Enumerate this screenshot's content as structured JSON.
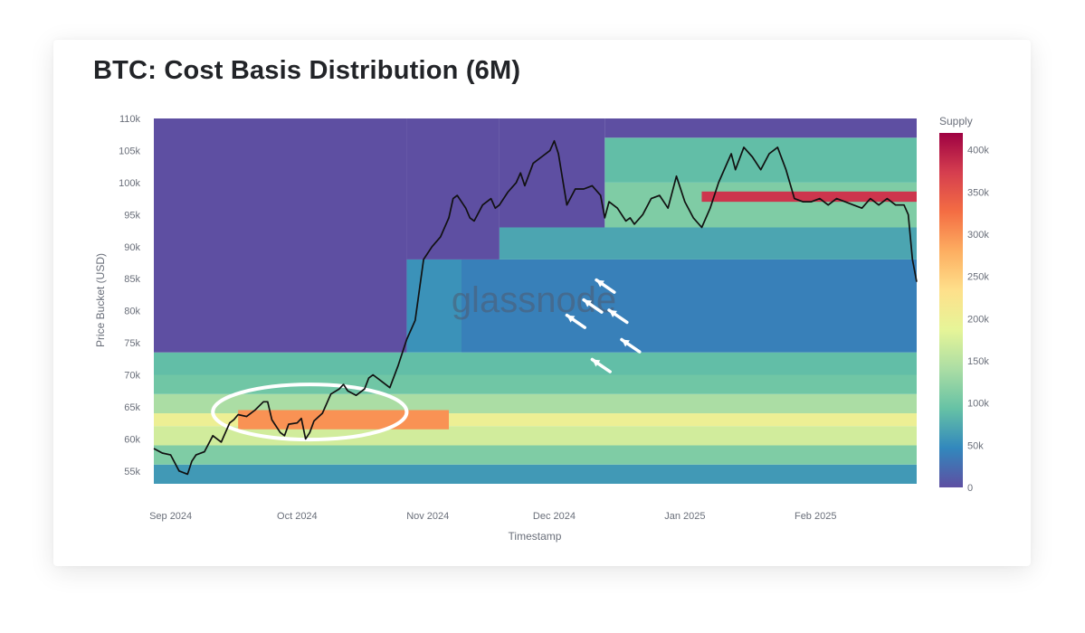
{
  "title": "BTC: Cost Basis Distribution (6M)",
  "watermark": "glassnode",
  "colors": {
    "line": "#111111",
    "highlight": "#ffffff",
    "empty_region": "#5e4fa2",
    "scale": [
      "#5e4fa2",
      "#3288bd",
      "#66c2a5",
      "#abdda4",
      "#e6f598",
      "#fee08b",
      "#fdae61",
      "#f46d43",
      "#d53e4f",
      "#9e0142"
    ]
  },
  "chart_data": {
    "type": "heatmap",
    "title": "BTC: Cost Basis Distribution (6M)",
    "xlabel": "Timestamp",
    "ylabel": "Price Bucket (USD)",
    "x_start": "2024-08-28",
    "x_end": "2025-02-25",
    "x_range_days": [
      0,
      181
    ],
    "x_ticks": [
      {
        "label": "Sep 2024",
        "day": 4
      },
      {
        "label": "Oct 2024",
        "day": 34
      },
      {
        "label": "Nov 2024",
        "day": 65
      },
      {
        "label": "Dec 2024",
        "day": 95
      },
      {
        "label": "Jan 2025",
        "day": 126
      },
      {
        "label": "Feb 2025",
        "day": 157
      }
    ],
    "ylim": [
      53000,
      110000
    ],
    "y_ticks": [
      {
        "label": "55k",
        "value": 55000
      },
      {
        "label": "60k",
        "value": 60000
      },
      {
        "label": "65k",
        "value": 65000
      },
      {
        "label": "70k",
        "value": 70000
      },
      {
        "label": "75k",
        "value": 75000
      },
      {
        "label": "80k",
        "value": 80000
      },
      {
        "label": "85k",
        "value": 85000
      },
      {
        "label": "90k",
        "value": 90000
      },
      {
        "label": "95k",
        "value": 95000
      },
      {
        "label": "100k",
        "value": 100000
      },
      {
        "label": "105k",
        "value": 105000
      },
      {
        "label": "110k",
        "value": 110000
      }
    ],
    "colorbar": {
      "title": "Supply",
      "range": [
        0,
        420000
      ],
      "ticks": [
        {
          "label": "0",
          "value": 0
        },
        {
          "label": "50k",
          "value": 50000
        },
        {
          "label": "100k",
          "value": 100000
        },
        {
          "label": "150k",
          "value": 150000
        },
        {
          "label": "200k",
          "value": 200000
        },
        {
          "label": "250k",
          "value": 250000
        },
        {
          "label": "300k",
          "value": 300000
        },
        {
          "label": "350k",
          "value": 350000
        },
        {
          "label": "400k",
          "value": 400000
        }
      ]
    },
    "supply_bands": [
      {
        "from_day": 0,
        "to_day": 181,
        "price_low": 53000,
        "price_high": 56000,
        "supply": 60000
      },
      {
        "from_day": 0,
        "to_day": 181,
        "price_low": 56000,
        "price_high": 59000,
        "supply": 110000
      },
      {
        "from_day": 0,
        "to_day": 181,
        "price_low": 59000,
        "price_high": 62000,
        "supply": 170000
      },
      {
        "from_day": 0,
        "to_day": 181,
        "price_low": 62000,
        "price_high": 64000,
        "supply": 200000
      },
      {
        "from_day": 0,
        "to_day": 181,
        "price_low": 64000,
        "price_high": 67000,
        "supply": 140000
      },
      {
        "from_day": 0,
        "to_day": 181,
        "price_low": 67000,
        "price_high": 70000,
        "supply": 100000
      },
      {
        "from_day": 0,
        "to_day": 181,
        "price_low": 70000,
        "price_high": 73500,
        "supply": 90000
      },
      {
        "from_day": 0,
        "to_day": 60,
        "price_low": 73500,
        "price_high": 110000,
        "supply": 0
      },
      {
        "from_day": 60,
        "to_day": 73,
        "price_low": 73500,
        "price_high": 88000,
        "supply": 55000
      },
      {
        "from_day": 73,
        "to_day": 181,
        "price_low": 73500,
        "price_high": 88000,
        "supply": 40000
      },
      {
        "from_day": 60,
        "to_day": 82,
        "price_low": 88000,
        "price_high": 110000,
        "supply": 0
      },
      {
        "from_day": 82,
        "to_day": 181,
        "price_low": 88000,
        "price_high": 93000,
        "supply": 70000
      },
      {
        "from_day": 82,
        "to_day": 107,
        "price_low": 93000,
        "price_high": 110000,
        "supply": 0
      },
      {
        "from_day": 107,
        "to_day": 181,
        "price_low": 93000,
        "price_high": 100000,
        "supply": 110000
      },
      {
        "from_day": 107,
        "to_day": 181,
        "price_low": 100000,
        "price_high": 107000,
        "supply": 90000
      },
      {
        "from_day": 107,
        "to_day": 181,
        "price_low": 107000,
        "price_high": 110000,
        "supply": 0
      },
      {
        "from_day": 20,
        "to_day": 70,
        "price_low": 61500,
        "price_high": 64500,
        "supply": 300000
      },
      {
        "from_day": 130,
        "to_day": 181,
        "price_low": 97000,
        "price_high": 98600,
        "supply": 380000
      }
    ],
    "series": [
      {
        "name": "BTC price",
        "x": [
          0,
          2,
          4,
          6,
          8,
          9,
          10,
          12,
          14,
          16,
          18,
          19,
          20,
          22,
          24,
          26,
          27,
          28,
          30,
          31,
          32,
          34,
          35,
          36,
          37,
          38,
          40,
          42,
          44,
          45,
          46,
          48,
          50,
          51,
          52,
          54,
          56,
          58,
          60,
          62,
          64,
          66,
          68,
          70,
          71,
          72,
          74,
          75,
          76,
          78,
          80,
          81,
          82,
          84,
          86,
          87,
          88,
          90,
          92,
          94,
          95,
          96,
          98,
          100,
          102,
          104,
          106,
          107,
          108,
          110,
          112,
          113,
          114,
          116,
          118,
          120,
          122,
          124,
          126,
          128,
          130,
          132,
          134,
          136,
          137,
          138,
          140,
          142,
          144,
          146,
          148,
          150,
          152,
          154,
          156,
          158,
          160,
          162,
          164,
          166,
          168,
          170,
          172,
          174,
          176,
          178,
          179,
          180,
          181
        ],
        "y": [
          58500,
          57800,
          57500,
          55000,
          54500,
          56500,
          57500,
          58000,
          60500,
          59500,
          62500,
          63000,
          63800,
          63500,
          64500,
          65800,
          65800,
          63000,
          61000,
          60500,
          62300,
          62500,
          63200,
          60000,
          61000,
          62800,
          64000,
          67000,
          67800,
          68500,
          67500,
          66800,
          67800,
          69500,
          70000,
          69000,
          68000,
          71500,
          75500,
          78500,
          88000,
          90000,
          91500,
          94500,
          97500,
          98000,
          96000,
          94500,
          94000,
          96500,
          97500,
          96000,
          96500,
          98500,
          100000,
          101500,
          99500,
          103000,
          104000,
          105000,
          106500,
          104500,
          96500,
          99000,
          99000,
          99500,
          98000,
          94500,
          97000,
          96000,
          94000,
          94500,
          93500,
          95000,
          97500,
          98000,
          96000,
          101000,
          97000,
          94500,
          93000,
          96000,
          100000,
          103000,
          104500,
          102000,
          105500,
          104000,
          102000,
          104500,
          105500,
          102000,
          97500,
          97000,
          97000,
          97500,
          96500,
          97500,
          97000,
          96500,
          96000,
          97500,
          96500,
          97500,
          96500,
          96500,
          95000,
          88000,
          84500
        ]
      }
    ],
    "annotations": {
      "ellipse": {
        "center_day": 37,
        "center_price": 64200,
        "half_width_days": 23,
        "half_height_usd": 4300
      },
      "arrows": [
        {
          "day": 105,
          "price": 84800
        },
        {
          "day": 102,
          "price": 81700
        },
        {
          "day": 108,
          "price": 80100
        },
        {
          "day": 98,
          "price": 79300
        },
        {
          "day": 111,
          "price": 75500
        },
        {
          "day": 104,
          "price": 72400
        }
      ]
    }
  }
}
